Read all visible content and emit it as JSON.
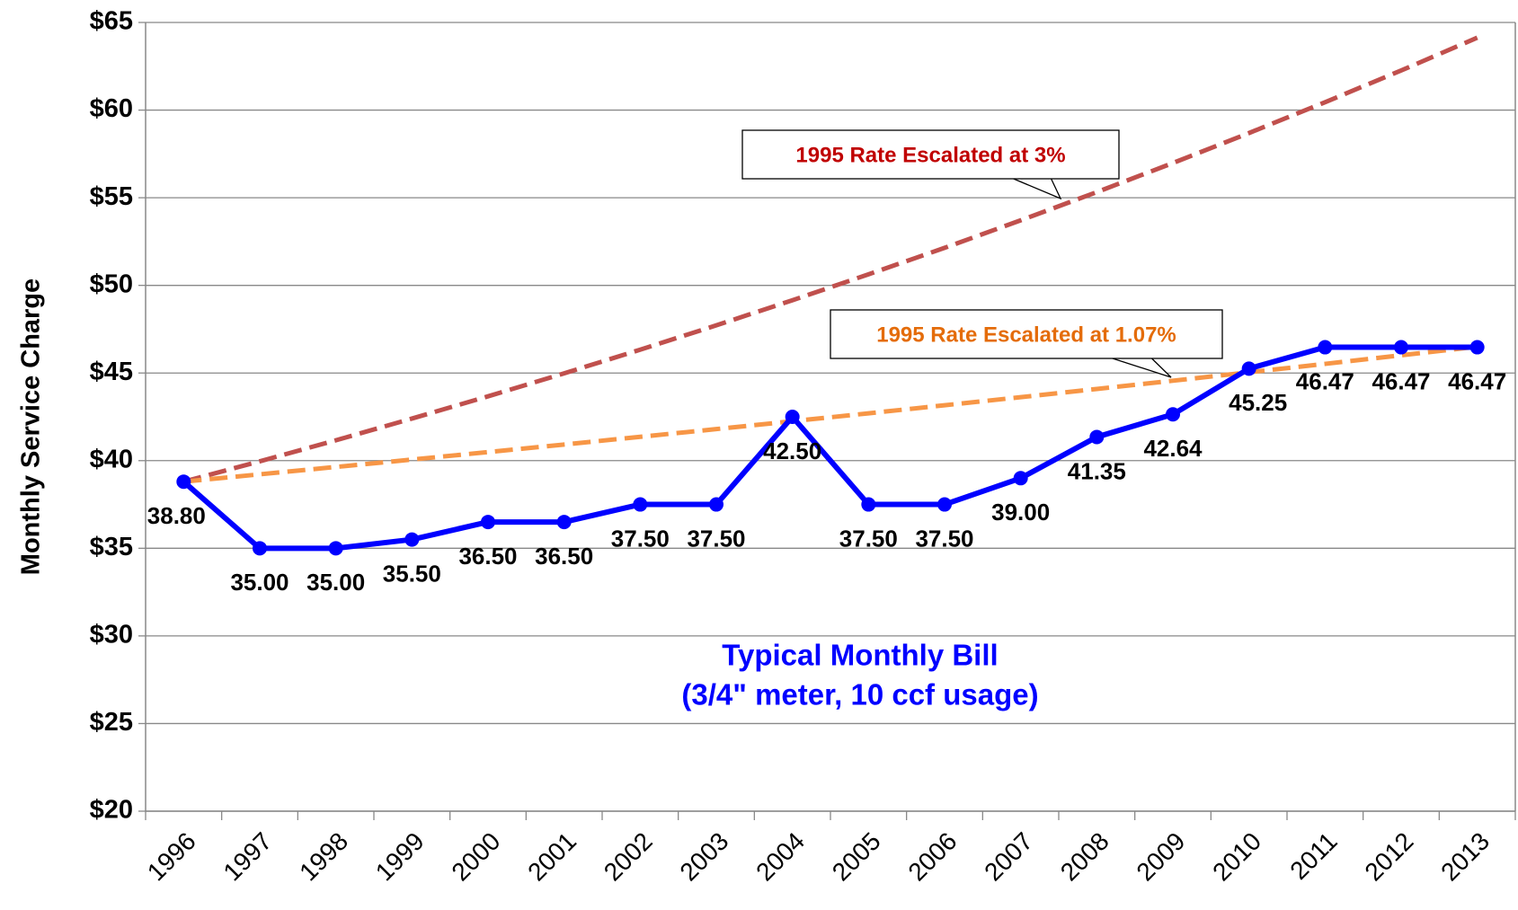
{
  "chart_data": {
    "type": "line",
    "y_label": "Monthly Service Charge",
    "categories": [
      "1996",
      "1997",
      "1998",
      "1999",
      "2000",
      "2001",
      "2002",
      "2003",
      "2004",
      "2005",
      "2006",
      "2007",
      "2008",
      "2009",
      "2010",
      "2011",
      "2012",
      "2013"
    ],
    "series": [
      {
        "name": "Typical Monthly Bill",
        "color": "#0000ff",
        "dashed": false,
        "markers": true,
        "values": [
          38.8,
          35,
          35,
          35.5,
          36.5,
          36.5,
          37.5,
          37.5,
          42.5,
          37.5,
          37.5,
          39,
          41.35,
          42.64,
          45.25,
          46.47,
          46.47,
          46.47
        ],
        "value_labels": [
          "38.80",
          "35.00",
          "35.00",
          "35.50",
          "36.50",
          "36.50",
          "37.50",
          "37.50",
          "42.50",
          "37.50",
          "37.50",
          "39.00",
          "41.35",
          "42.64",
          "45.25",
          "46.47",
          "46.47",
          "46.47"
        ]
      },
      {
        "name": "1995 Rate Escalated at 3%",
        "color": "#c0504d",
        "dashed": true,
        "markers": false,
        "values": [
          38.8,
          39.96,
          41.16,
          42.4,
          43.67,
          44.98,
          46.33,
          47.72,
          49.15,
          50.63,
          52.14,
          53.71,
          55.32,
          56.98,
          58.69,
          60.45,
          62.26,
          64.13
        ]
      },
      {
        "name": "1995 Rate Escalated at 1.07%",
        "color": "#f79646",
        "dashed": true,
        "markers": false,
        "values": [
          38.8,
          39.22,
          39.64,
          40.06,
          40.49,
          40.92,
          41.36,
          41.8,
          42.25,
          42.7,
          43.16,
          43.62,
          44.09,
          44.56,
          45.04,
          45.52,
          46.01,
          46.5
        ]
      }
    ],
    "annotation": "(3/4\" meter, 10 ccf usage)",
    "ylim": [
      20,
      65
    ],
    "yticks": [
      {
        "value": 20,
        "label": "$20"
      },
      {
        "value": 25,
        "label": "$25"
      },
      {
        "value": 30,
        "label": "$30"
      },
      {
        "value": 35,
        "label": "$35"
      },
      {
        "value": 40,
        "label": "$40"
      },
      {
        "value": 45,
        "label": "$45"
      },
      {
        "value": 50,
        "label": "$50"
      },
      {
        "value": 55,
        "label": "$55"
      },
      {
        "value": 60,
        "label": "$60"
      },
      {
        "value": 65,
        "label": "$65"
      }
    ],
    "grid": true
  }
}
